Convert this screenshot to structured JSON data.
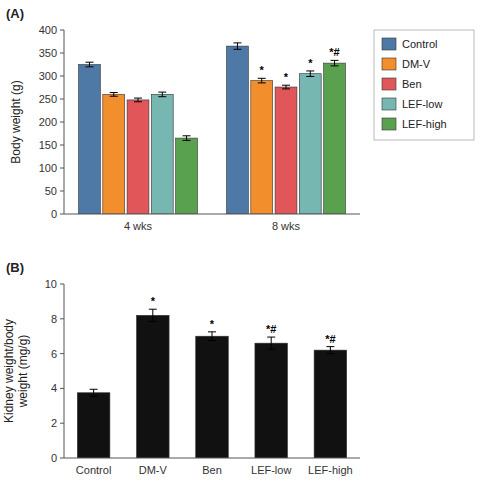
{
  "chart_data": [
    {
      "type": "bar",
      "title": "(A)",
      "ylabel": "Body weight (g)",
      "categories": [
        "4 wks",
        "8 wks"
      ],
      "series": [
        {
          "name": "Control",
          "color": "#4e79a7",
          "values": [
            325,
            365
          ],
          "errors": [
            5,
            7
          ]
        },
        {
          "name": "DM-V",
          "color": "#f28e2b",
          "values": [
            260,
            290
          ],
          "errors": [
            4,
            5
          ],
          "annotations": [
            null,
            "*"
          ]
        },
        {
          "name": "Ben",
          "color": "#e15759",
          "values": [
            248,
            276
          ],
          "errors": [
            4,
            4
          ],
          "annotations": [
            null,
            "*"
          ]
        },
        {
          "name": "LEF-low",
          "color": "#76b7b2",
          "values": [
            260,
            305
          ],
          "errors": [
            5,
            6
          ],
          "annotations": [
            null,
            "*"
          ]
        },
        {
          "name": "LEF-high",
          "color": "#59a14f",
          "values": [
            165,
            328
          ],
          "errors": [
            5,
            6
          ],
          "annotations": [
            null,
            "*#"
          ]
        }
      ],
      "ylim": [
        0,
        400
      ],
      "yticks": [
        0,
        50,
        100,
        150,
        200,
        250,
        300,
        350,
        400
      ],
      "grid": false,
      "legend": "right"
    },
    {
      "type": "bar",
      "title": "(B)",
      "ylabel": "Kidney weight/body\nweight (mg/g)",
      "categories": [
        "Control",
        "DM-V",
        "Ben",
        "LEF-low",
        "LEF-high"
      ],
      "values": [
        3.75,
        8.2,
        7.0,
        6.6,
        6.2
      ],
      "errors": [
        0.2,
        0.35,
        0.25,
        0.35,
        0.2
      ],
      "annotations": [
        null,
        "*",
        "*",
        "*#",
        "*#"
      ],
      "color": "#111111",
      "ylim": [
        0,
        10
      ],
      "yticks": [
        0,
        2,
        4,
        6,
        8,
        10
      ],
      "grid": false
    }
  ]
}
